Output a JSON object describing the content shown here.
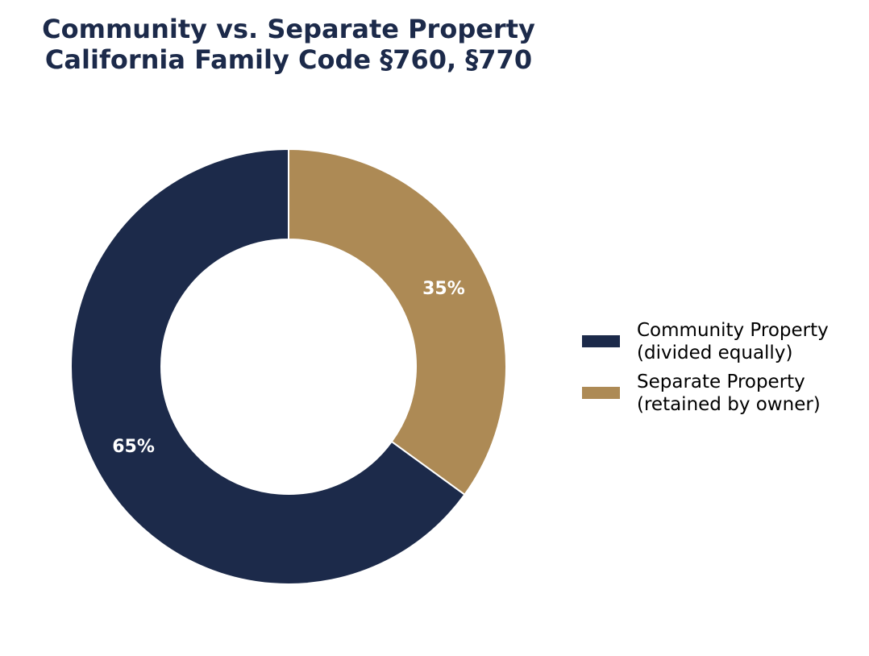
{
  "chart_data": {
    "type": "pie",
    "donut": true,
    "title_lines": [
      "Community vs. Separate Property",
      "California Family Code §760, §770"
    ],
    "slices": [
      {
        "label_lines": [
          "Community Property",
          "(divided equally)"
        ],
        "value": 65,
        "display": "65%",
        "color": "#1c2a4a"
      },
      {
        "label_lines": [
          "Separate Property",
          "(retained by owner)"
        ],
        "value": 35,
        "display": "35%",
        "color": "#ad8a55"
      }
    ],
    "legend_position": "right",
    "start_angle": "top",
    "direction": "clockwise"
  }
}
